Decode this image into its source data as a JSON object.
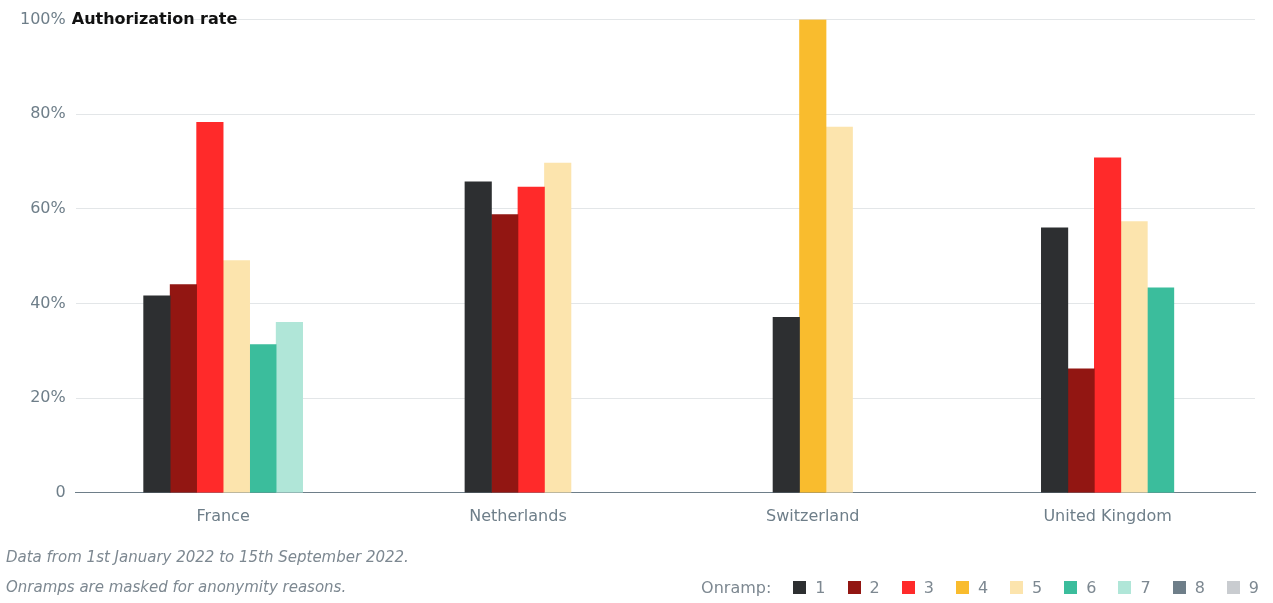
{
  "chart_data": {
    "type": "bar",
    "title": "Authorization rate",
    "legend_title": "Onramp:",
    "categories": [
      "France",
      "Netherlands",
      "Switzerland",
      "United Kingdom"
    ],
    "series": [
      {
        "name": "1",
        "color": "#2d2f31",
        "values": [
          41.6,
          65.7,
          37.1,
          56.0
        ]
      },
      {
        "name": "2",
        "color": "#921612",
        "values": [
          44.0,
          58.8,
          null,
          26.2
        ]
      },
      {
        "name": "3",
        "color": "#ff2a2a",
        "values": [
          78.3,
          64.6,
          null,
          70.8
        ]
      },
      {
        "name": "4",
        "color": "#f9bc2e",
        "values": [
          null,
          null,
          100,
          null
        ]
      },
      {
        "name": "5",
        "color": "#fce4ad",
        "values": [
          49.1,
          69.7,
          77.3,
          57.3
        ]
      },
      {
        "name": "6",
        "color": "#3bbd9c",
        "values": [
          31.3,
          null,
          null,
          43.3
        ]
      },
      {
        "name": "7",
        "color": "#b0e6d8",
        "values": [
          36.0,
          null,
          null,
          null
        ]
      },
      {
        "name": "8",
        "color": "#6e7e89",
        "values": [
          null,
          null,
          null,
          null
        ]
      },
      {
        "name": "9",
        "color": "#c9ccd0",
        "values": [
          null,
          null,
          null,
          null
        ]
      }
    ],
    "ylim": [
      0,
      100
    ],
    "yticks": [
      {
        "value": 0,
        "label": "0"
      },
      {
        "value": 20,
        "label": "20%"
      },
      {
        "value": 40,
        "label": "40%"
      },
      {
        "value": 60,
        "label": "60%"
      },
      {
        "value": 80,
        "label": "80%"
      },
      {
        "value": 100,
        "label": "100%"
      }
    ],
    "grid": "y",
    "legend": "bottom right",
    "annotations": [
      "Data from 1st January 2022 to 15th September 2022.",
      "Onramps are masked for anonymity reasons."
    ]
  }
}
